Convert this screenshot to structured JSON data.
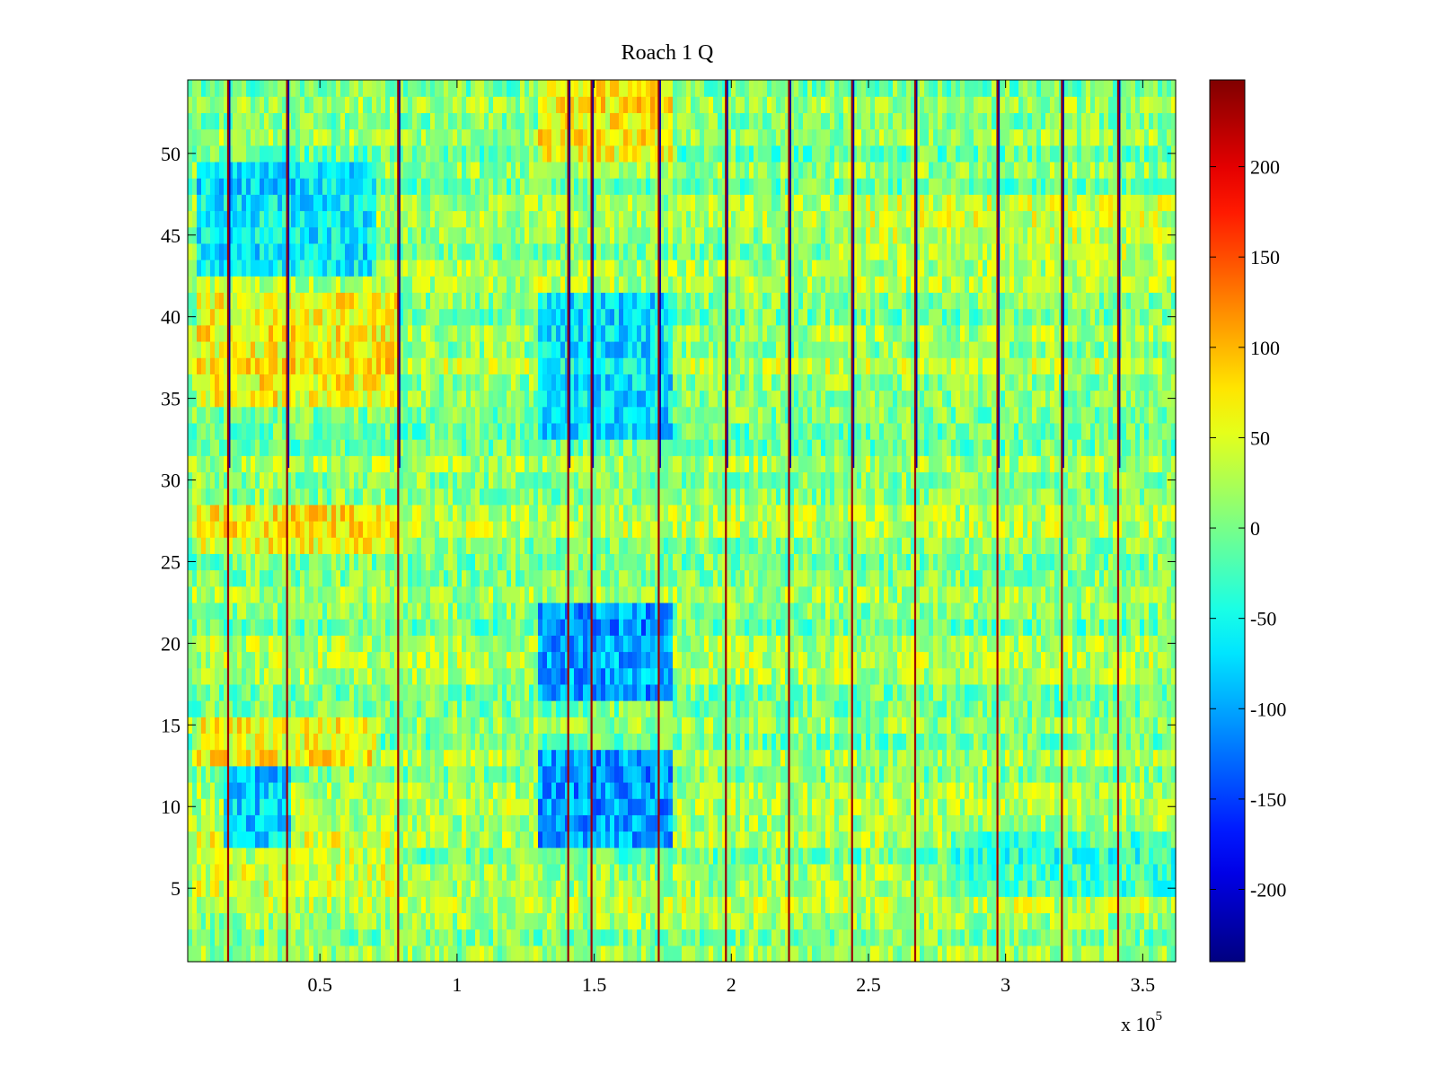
{
  "chart_data": {
    "type": "heatmap",
    "title": "Roach 1 Q",
    "xlabel": "",
    "ylabel": "",
    "x_range": [
      1800,
      362000
    ],
    "y_range": [
      0.5,
      54.5
    ],
    "x_ticks": [
      0.5,
      1,
      1.5,
      2,
      2.5,
      3,
      3.5
    ],
    "x_tick_labels": [
      "0.5",
      "1",
      "1.5",
      "2",
      "2.5",
      "3",
      "3.5"
    ],
    "x_multiplier": {
      "prefix": "x 10",
      "exponent": "5"
    },
    "y_ticks": [
      5,
      10,
      15,
      20,
      25,
      30,
      35,
      40,
      45,
      50
    ],
    "y_tick_labels": [
      "5",
      "10",
      "15",
      "20",
      "25",
      "30",
      "35",
      "40",
      "45",
      "50"
    ],
    "rows": 54,
    "colormap": "jet",
    "color_range": [
      -240,
      248
    ],
    "colorbar_ticks": [
      200,
      150,
      100,
      50,
      0,
      -50,
      -100,
      -150,
      -200
    ],
    "colorbar_tick_labels": [
      "200",
      "150",
      "100",
      "50",
      "0",
      "-50",
      "-100",
      "-150",
      "-200"
    ],
    "vertical_bands": [
      16500,
      38000,
      78500,
      140500,
      149000,
      173500,
      198000,
      221000,
      244000,
      267000,
      297000,
      320500,
      341000
    ],
    "background_value": 10,
    "regions": [
      {
        "x": [
          5000,
          78000
        ],
        "y": [
          35,
          41
        ],
        "value": 85
      },
      {
        "x": [
          5000,
          78000
        ],
        "y": [
          26,
          28
        ],
        "value": 85
      },
      {
        "x": [
          5000,
          70000
        ],
        "y": [
          13,
          15
        ],
        "value": 85
      },
      {
        "x": [
          5000,
          78000
        ],
        "y": [
          5,
          8
        ],
        "value": 55
      },
      {
        "x": [
          5000,
          70000
        ],
        "y": [
          43,
          49
        ],
        "value": -85
      },
      {
        "x": [
          15000,
          40000
        ],
        "y": [
          8,
          12
        ],
        "value": -110
      },
      {
        "x": [
          130000,
          178000
        ],
        "y": [
          8,
          13
        ],
        "value": -150
      },
      {
        "x": [
          130000,
          178000
        ],
        "y": [
          17,
          22
        ],
        "value": -140
      },
      {
        "x": [
          130000,
          178000
        ],
        "y": [
          33,
          41
        ],
        "value": -90
      },
      {
        "x": [
          130000,
          178000
        ],
        "y": [
          50,
          54
        ],
        "value": 90
      },
      {
        "x": [
          240000,
          362000
        ],
        "y": [
          44,
          47
        ],
        "value": 45
      },
      {
        "x": [
          280000,
          362000
        ],
        "y": [
          5,
          8
        ],
        "value": -40
      }
    ]
  }
}
